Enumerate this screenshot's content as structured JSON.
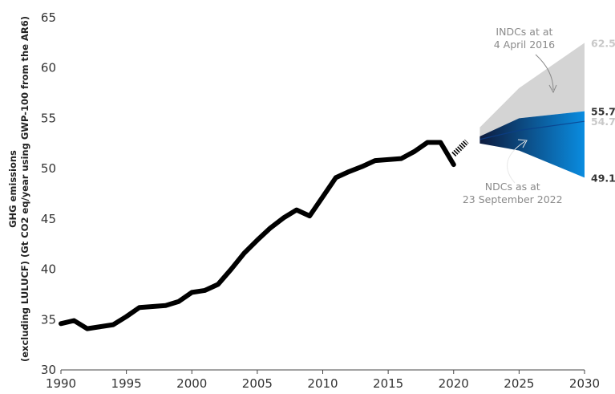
{
  "chart_data": {
    "type": "line",
    "title": "",
    "xlabel": "",
    "ylabel_lines": [
      "GHG emissions",
      "(excluding LULUCF) (Gt CO2 eq/year using GWP-100 from the AR6)"
    ],
    "xlim": [
      1990,
      2030
    ],
    "ylim": [
      30,
      65
    ],
    "x_ticks": [
      1990,
      1995,
      2000,
      2005,
      2010,
      2015,
      2020,
      2025,
      2030
    ],
    "y_ticks": [
      30,
      35,
      40,
      45,
      50,
      55,
      60,
      65
    ],
    "grid": false,
    "series": [
      {
        "role": "historical",
        "x": [
          1990,
          1991,
          1992,
          1993,
          1994,
          1995,
          1996,
          1997,
          1998,
          1999,
          2000,
          2001,
          2002,
          2003,
          2004,
          2005,
          2006,
          2007,
          2008,
          2009,
          2010,
          2011,
          2012,
          2013,
          2014,
          2015,
          2016,
          2017,
          2018,
          2019,
          2020
        ],
        "values": [
          34.6,
          34.9,
          34.1,
          34.3,
          34.5,
          35.3,
          36.2,
          36.3,
          36.4,
          36.8,
          37.7,
          37.9,
          38.5,
          40.0,
          41.6,
          42.9,
          44.1,
          45.1,
          45.9,
          45.3,
          47.2,
          49.1,
          49.7,
          50.2,
          50.8,
          50.9,
          51.0,
          51.7,
          52.6,
          52.6,
          50.4
        ]
      },
      {
        "role": "recovery-dashed",
        "x": [
          2020,
          2021
        ],
        "values": [
          51.4,
          52.7
        ]
      }
    ],
    "bands": [
      {
        "name": "INDCs at at 4 April 2016",
        "x": [
          2022,
          2025,
          2030
        ],
        "upper": [
          54.1,
          58.0,
          62.5
        ],
        "lower": [
          53.0,
          55.0,
          55.7
        ],
        "color": "#d4d4d4"
      },
      {
        "name": "NDCs as at 23 September 2022",
        "x": [
          2022,
          2025,
          2030
        ],
        "upper": [
          53.2,
          55.0,
          55.7
        ],
        "lower": [
          52.5,
          51.8,
          49.1
        ],
        "color_start": "#0d1b3e",
        "color_end": "#0a8ce0"
      }
    ],
    "inner_line": {
      "x": [
        2022,
        2025,
        2030
      ],
      "values": [
        52.9,
        53.8,
        54.7
      ]
    },
    "annotations": [
      {
        "lines": [
          "INDCs at at",
          "4 April 2016"
        ]
      },
      {
        "lines": [
          "NDCs as at",
          "23 September 2022"
        ]
      }
    ],
    "end_labels": [
      {
        "text": "62.5",
        "value": 62.5,
        "color": "#c8c8c8"
      },
      {
        "text": "55.7",
        "value": 55.7,
        "color": "#333333"
      },
      {
        "text": "54.7",
        "value": 54.7,
        "color": "#c8c8c8"
      },
      {
        "text": "49.1",
        "value": 49.1,
        "color": "#333333"
      }
    ]
  }
}
